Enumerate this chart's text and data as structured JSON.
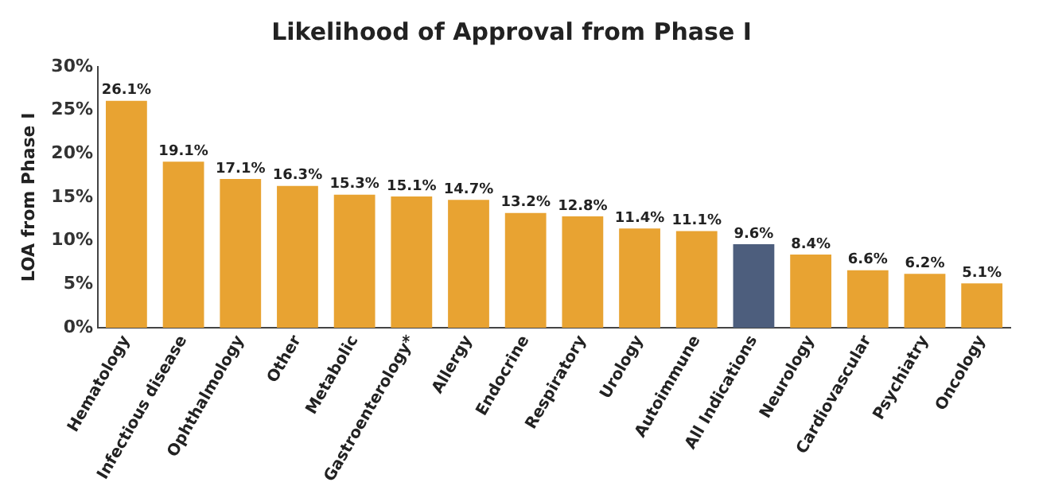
{
  "chart_data": {
    "type": "bar",
    "title": "Likelihood of Approval from Phase I",
    "ylabel": "LOA from Phase I",
    "categories": [
      "Hematology",
      "Infectious disease",
      "Ophthalmology",
      "Other",
      "Metabolic",
      "Gastroenterology*",
      "Allergy",
      "Endocrine",
      "Respiratory",
      "Urology",
      "Autoimmune",
      "All Indications",
      "Neurology",
      "Cardiovascular",
      "Psychiatry",
      "Oncology"
    ],
    "values": [
      26.1,
      19.1,
      17.1,
      16.3,
      15.3,
      15.1,
      14.7,
      13.2,
      12.8,
      11.4,
      11.1,
      9.6,
      8.4,
      6.6,
      6.2,
      5.1
    ],
    "colors": [
      "#e8a332",
      "#e8a332",
      "#e8a332",
      "#e8a332",
      "#e8a332",
      "#e8a332",
      "#e8a332",
      "#e8a332",
      "#e8a332",
      "#e8a332",
      "#e8a332",
      "#4d5e7d",
      "#e8a332",
      "#e8a332",
      "#e8a332",
      "#e8a332"
    ],
    "value_labels": [
      "26.1%",
      "19.1%",
      "17.1%",
      "16.3%",
      "15.3%",
      "15.1%",
      "14.7%",
      "13.2%",
      "12.8%",
      "11.4%",
      "11.1%",
      "9.6%",
      "8.4%",
      "6.6%",
      "6.2%",
      "5.1%"
    ],
    "ylim": [
      0,
      30
    ],
    "yticks": [
      {
        "value": 0,
        "label": "0%"
      },
      {
        "value": 5,
        "label": "5%"
      },
      {
        "value": 10,
        "label": "10%"
      },
      {
        "value": 15,
        "label": "15%"
      },
      {
        "value": 20,
        "label": "20%"
      },
      {
        "value": 25,
        "label": "25%"
      },
      {
        "value": 30,
        "label": "30%"
      }
    ],
    "grid": false,
    "legend": false
  }
}
